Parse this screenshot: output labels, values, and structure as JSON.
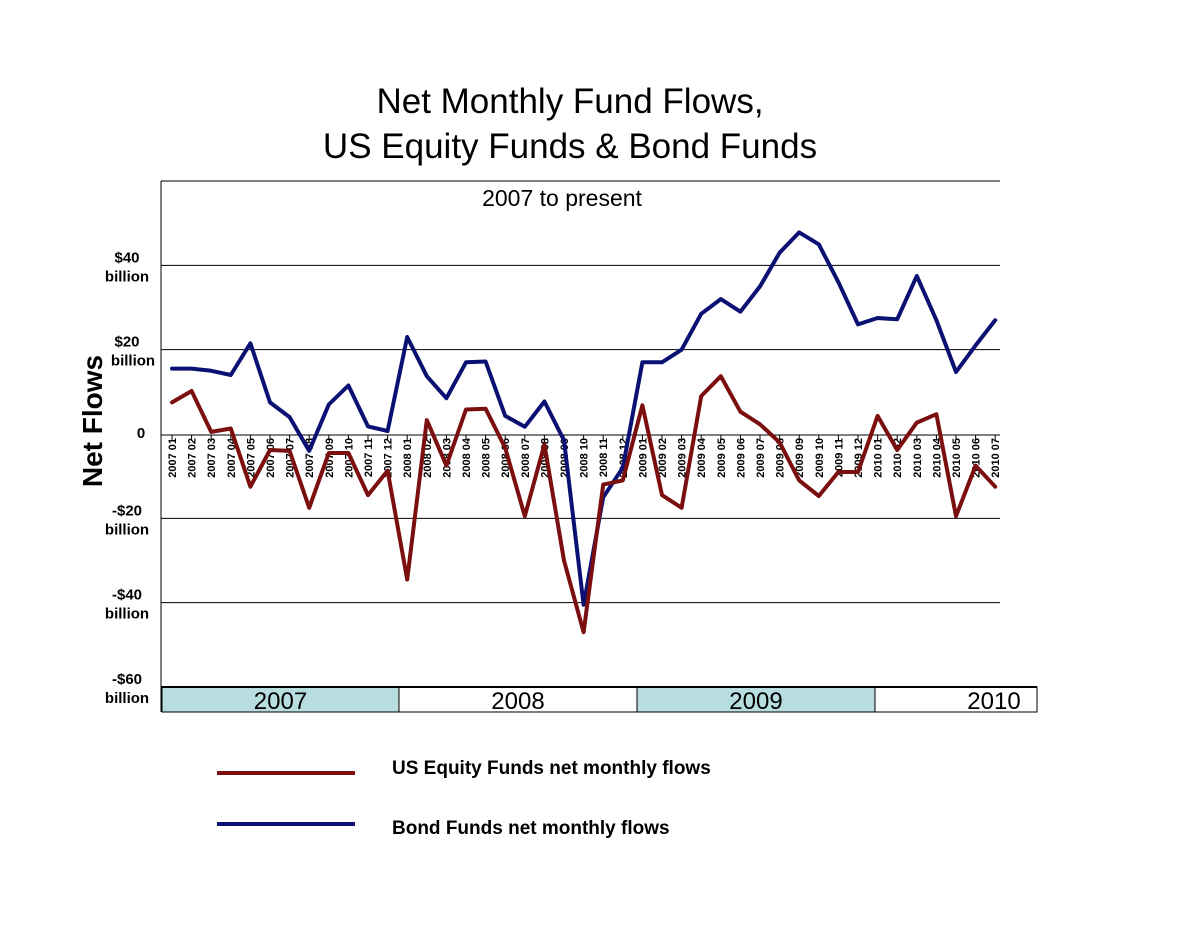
{
  "chart_data": {
    "type": "line",
    "title": [
      "Net Monthly Fund Flows,",
      "US Equity Funds & Bond Funds"
    ],
    "subtitle": "2007 to present",
    "ylabel": "Net Flows",
    "ylim": [
      -60,
      60
    ],
    "yticks": [
      {
        "value": 40,
        "lines": [
          "$40",
          "billion"
        ]
      },
      {
        "value": 20,
        "lines": [
          "$20",
          "billion"
        ]
      },
      {
        "value": 0,
        "lines": [
          "0"
        ]
      },
      {
        "value": -20,
        "lines": [
          "-$20",
          "billion"
        ]
      },
      {
        "value": -40,
        "lines": [
          "-$40",
          "billion"
        ]
      },
      {
        "value": -60,
        "lines": [
          "-$60",
          "billion"
        ]
      }
    ],
    "gridlines": [
      60,
      40,
      20,
      -20,
      -40
    ],
    "x": [
      "2007 01",
      "2007 02",
      "2007 03",
      "2007 04",
      "2007 05",
      "2007 06",
      "2007 07",
      "2007 08",
      "2007 09",
      "2007 10",
      "2007 11",
      "2007 12",
      "2008 01",
      "2008 02",
      "2008 03",
      "2008 04",
      "2008 05",
      "2008 06",
      "2008 07",
      "2008 08",
      "2008 09",
      "2008 10",
      "2008 11",
      "2008 12",
      "2009 01",
      "2009 02",
      "2009 03",
      "2009 04",
      "2009 05",
      "2009 06",
      "2009 07",
      "2009 08",
      "2009 09",
      "2009 10",
      "2009 11",
      "2009 12",
      "2010 01",
      "2010 02",
      "2010 03",
      "2010 04",
      "2010 05",
      "2010 06",
      "2010 07"
    ],
    "years": [
      {
        "label": "2007",
        "shaded": true
      },
      {
        "label": "2008",
        "shaded": false
      },
      {
        "label": "2009",
        "shaded": true
      },
      {
        "label": "2010",
        "shaded": false
      }
    ],
    "series": [
      {
        "name": "US Equity Funds net monthly flows",
        "color": "#7b0f0f",
        "values": [
          7.5,
          10.2,
          0.5,
          1.3,
          -12.5,
          -3.8,
          -4,
          -17.5,
          -4.5,
          -4.5,
          -14.5,
          -8.7,
          -34.5,
          3.3,
          -7.5,
          5.8,
          6,
          -3.3,
          -19.5,
          -2.5,
          -30,
          -47,
          -12,
          -11,
          6.8,
          -14.5,
          -17.5,
          9,
          13.7,
          5.3,
          2.3,
          -2,
          -11,
          -14.7,
          -9,
          -9,
          4.3,
          -3.8,
          2.7,
          4.7,
          -19.5,
          -7.5,
          -12.5
        ]
      },
      {
        "name": "Bond Funds net monthly flows",
        "color": "#0a1172",
        "values": [
          15.5,
          15.5,
          15,
          14,
          21.5,
          7.5,
          4,
          -4,
          7,
          11.5,
          1.8,
          0.7,
          23,
          13.7,
          8.5,
          17,
          17.2,
          4.3,
          1.7,
          7.7,
          -1.5,
          -40.5,
          -15,
          -8,
          17,
          17,
          20,
          28.5,
          32,
          29,
          35,
          43,
          47.8,
          45,
          36,
          26,
          27.5,
          27.2,
          37.5,
          27,
          14.7,
          21,
          27
        ]
      }
    ],
    "legend_position": "bottom"
  }
}
